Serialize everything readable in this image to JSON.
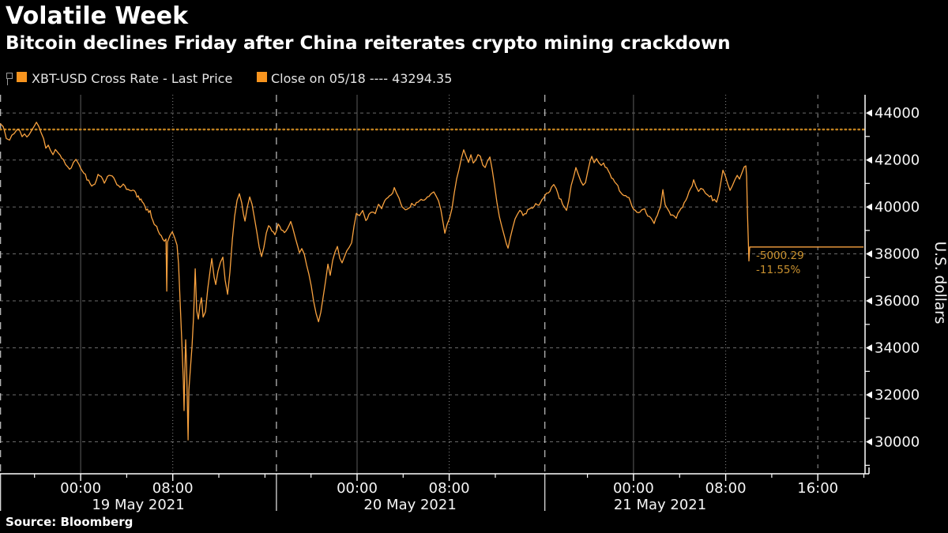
{
  "title": "Volatile Week",
  "subtitle": "Bitcoin declines Friday after China reiterates crypto mining crackdown",
  "source": "Source: Bloomberg",
  "legend": {
    "series_label": "XBT-USD Cross Rate - Last Price",
    "close_label": "Close on 05/18 ---- 43294.35"
  },
  "colors": {
    "background": "#000000",
    "accent_swatch": "#f7941e",
    "series_line": "#f9a23f",
    "close_line": "#bf801f",
    "annotation_text": "#c9912f",
    "axis": "#ffffff",
    "grid": "#6b6b6b",
    "separator": "#c4c4c4"
  },
  "chart_data": {
    "type": "line",
    "title": "XBT-USD Cross Rate - Last Price",
    "ylabel": "U.S. dollars",
    "x_unit": "hours since 19 May 2021 00:00",
    "x_range": [
      -7.0,
      68.1
    ],
    "y_range": [
      28640,
      44775
    ],
    "grid": "dashed horizontal at every 2000; vertical at 8h steps",
    "legend_position": "top-left",
    "close_line": {
      "value": 43294.35,
      "label": "Close on 05/18"
    },
    "last_price": 38294.06,
    "annotation": {
      "change": "-5000.29",
      "pct": "-11.55%"
    },
    "y_ticks_major": [
      30000,
      32000,
      34000,
      36000,
      38000,
      40000,
      42000,
      44000
    ],
    "y_ticks_minor": [
      29000,
      31000,
      33000,
      35000,
      37000,
      39000,
      41000,
      43000
    ],
    "x_ticks_major": [
      {
        "t": 0,
        "label": "00:00"
      },
      {
        "t": 8,
        "label": "08:00"
      },
      {
        "t": 24,
        "label": "00:00"
      },
      {
        "t": 32,
        "label": "08:00"
      },
      {
        "t": 48,
        "label": "00:00"
      },
      {
        "t": 56,
        "label": "08:00"
      },
      {
        "t": 64,
        "label": "16:00"
      }
    ],
    "x_ticks_minor": [
      -4,
      4,
      12,
      16,
      20,
      28,
      36,
      44,
      52,
      60,
      68
    ],
    "x_grid_solid": [
      0,
      24,
      48
    ],
    "x_grid_dotted": [
      8,
      32,
      56
    ],
    "x_grid_dashed": [
      64
    ],
    "day_separators": [
      -6.95,
      17.0,
      40.3
    ],
    "date_labels": [
      {
        "t": 5.0,
        "label": "19 May 2021"
      },
      {
        "t": 28.6,
        "label": "20 May 2021"
      },
      {
        "t": 50.3,
        "label": "21 May 2021"
      }
    ],
    "noise": {
      "seed": 13,
      "amplitude": 95,
      "end_t": 57.7
    },
    "series": [
      [
        -7.0,
        43600
      ],
      [
        -6.72,
        43400
      ],
      [
        -6.45,
        43000
      ],
      [
        -6.17,
        42820
      ],
      [
        -5.97,
        43050
      ],
      [
        -5.76,
        43150
      ],
      [
        -5.56,
        43300
      ],
      [
        -5.28,
        43230
      ],
      [
        -5.08,
        43000
      ],
      [
        -4.87,
        43120
      ],
      [
        -4.66,
        42950
      ],
      [
        -4.46,
        43080
      ],
      [
        -4.25,
        43250
      ],
      [
        -4.05,
        43420
      ],
      [
        -3.84,
        43620
      ],
      [
        -3.63,
        43450
      ],
      [
        -3.43,
        43150
      ],
      [
        -3.22,
        42900
      ],
      [
        -3.02,
        42520
      ],
      [
        -2.81,
        42650
      ],
      [
        -2.61,
        42400
      ],
      [
        -2.4,
        42250
      ],
      [
        -2.19,
        42430
      ],
      [
        -1.99,
        42320
      ],
      [
        -1.78,
        42180
      ],
      [
        -1.51,
        42000
      ],
      [
        -1.3,
        41830
      ],
      [
        -1.1,
        41620
      ],
      [
        -0.82,
        41680
      ],
      [
        -0.62,
        41890
      ],
      [
        -0.41,
        42010
      ],
      [
        -0.14,
        41780
      ],
      [
        0.14,
        41520
      ],
      [
        0.41,
        41330
      ],
      [
        0.69,
        41120
      ],
      [
        0.96,
        40900
      ],
      [
        1.23,
        41030
      ],
      [
        1.51,
        41380
      ],
      [
        1.78,
        41290
      ],
      [
        2.06,
        41020
      ],
      [
        2.33,
        41210
      ],
      [
        2.61,
        41360
      ],
      [
        2.88,
        41230
      ],
      [
        3.15,
        41010
      ],
      [
        3.43,
        40820
      ],
      [
        3.7,
        40930
      ],
      [
        3.98,
        40760
      ],
      [
        4.25,
        40700
      ],
      [
        4.66,
        40610
      ],
      [
        5.01,
        40380
      ],
      [
        5.35,
        40180
      ],
      [
        5.69,
        39950
      ],
      [
        6.04,
        39780
      ],
      [
        6.38,
        39350
      ],
      [
        6.72,
        39000
      ],
      [
        7.0,
        38750
      ],
      [
        7.27,
        38550
      ],
      [
        7.41,
        38650
      ],
      [
        7.48,
        36400
      ],
      [
        7.54,
        38500
      ],
      [
        7.75,
        38800
      ],
      [
        7.96,
        38950
      ],
      [
        8.16,
        38700
      ],
      [
        8.37,
        38350
      ],
      [
        8.5,
        37600
      ],
      [
        8.64,
        36000
      ],
      [
        8.78,
        34300
      ],
      [
        8.92,
        32600
      ],
      [
        8.98,
        31350
      ],
      [
        9.05,
        33100
      ],
      [
        9.12,
        34350
      ],
      [
        9.19,
        33300
      ],
      [
        9.26,
        31800
      ],
      [
        9.33,
        30080
      ],
      [
        9.4,
        32200
      ],
      [
        9.53,
        33100
      ],
      [
        9.67,
        34100
      ],
      [
        9.81,
        35350
      ],
      [
        9.95,
        37380
      ],
      [
        10.08,
        35600
      ],
      [
        10.22,
        35200
      ],
      [
        10.36,
        35800
      ],
      [
        10.49,
        36130
      ],
      [
        10.63,
        35300
      ],
      [
        10.84,
        35560
      ],
      [
        11.04,
        36500
      ],
      [
        11.25,
        37300
      ],
      [
        11.39,
        37820
      ],
      [
        11.59,
        37000
      ],
      [
        11.73,
        36700
      ],
      [
        11.93,
        37300
      ],
      [
        12.14,
        37650
      ],
      [
        12.35,
        37880
      ],
      [
        12.55,
        36900
      ],
      [
        12.76,
        36280
      ],
      [
        12.96,
        37200
      ],
      [
        13.17,
        38600
      ],
      [
        13.37,
        39600
      ],
      [
        13.58,
        40300
      ],
      [
        13.78,
        40540
      ],
      [
        13.99,
        40100
      ],
      [
        14.27,
        39400
      ],
      [
        14.47,
        40000
      ],
      [
        14.68,
        40430
      ],
      [
        14.88,
        40100
      ],
      [
        15.09,
        39500
      ],
      [
        15.3,
        38900
      ],
      [
        15.5,
        38300
      ],
      [
        15.71,
        37900
      ],
      [
        15.91,
        38300
      ],
      [
        16.12,
        38900
      ],
      [
        16.32,
        39200
      ],
      [
        16.6,
        39000
      ],
      [
        16.87,
        38900
      ],
      [
        17.15,
        39250
      ],
      [
        17.42,
        39100
      ],
      [
        17.7,
        38900
      ],
      [
        17.97,
        39100
      ],
      [
        18.24,
        39300
      ],
      [
        18.52,
        38900
      ],
      [
        18.79,
        38400
      ],
      [
        19.0,
        38050
      ],
      [
        19.2,
        38250
      ],
      [
        19.41,
        38000
      ],
      [
        19.62,
        37500
      ],
      [
        19.82,
        37100
      ],
      [
        20.03,
        36600
      ],
      [
        20.23,
        36000
      ],
      [
        20.44,
        35450
      ],
      [
        20.65,
        35130
      ],
      [
        20.85,
        35500
      ],
      [
        21.06,
        36200
      ],
      [
        21.26,
        36800
      ],
      [
        21.47,
        37550
      ],
      [
        21.67,
        37100
      ],
      [
        21.88,
        37700
      ],
      [
        22.09,
        38100
      ],
      [
        22.29,
        38300
      ],
      [
        22.5,
        37800
      ],
      [
        22.7,
        37600
      ],
      [
        22.91,
        37900
      ],
      [
        23.11,
        38150
      ],
      [
        23.32,
        38300
      ],
      [
        23.53,
        38500
      ],
      [
        23.73,
        39200
      ],
      [
        23.94,
        39730
      ],
      [
        24.21,
        39600
      ],
      [
        24.49,
        39850
      ],
      [
        24.76,
        39400
      ],
      [
        25.03,
        39620
      ],
      [
        25.31,
        39800
      ],
      [
        25.58,
        39750
      ],
      [
        25.86,
        40100
      ],
      [
        26.13,
        39900
      ],
      [
        26.41,
        40250
      ],
      [
        26.68,
        40400
      ],
      [
        26.95,
        40520
      ],
      [
        27.23,
        40800
      ],
      [
        27.43,
        40600
      ],
      [
        27.64,
        40350
      ],
      [
        27.91,
        40050
      ],
      [
        28.19,
        39850
      ],
      [
        28.46,
        40000
      ],
      [
        28.74,
        40150
      ],
      [
        29.01,
        40000
      ],
      [
        29.29,
        40200
      ],
      [
        29.56,
        40350
      ],
      [
        29.84,
        40300
      ],
      [
        30.11,
        40450
      ],
      [
        30.38,
        40500
      ],
      [
        30.66,
        40650
      ],
      [
        30.86,
        40450
      ],
      [
        31.07,
        40250
      ],
      [
        31.28,
        39900
      ],
      [
        31.48,
        39300
      ],
      [
        31.62,
        38870
      ],
      [
        31.82,
        39250
      ],
      [
        32.03,
        39500
      ],
      [
        32.24,
        39900
      ],
      [
        32.44,
        40600
      ],
      [
        32.65,
        41200
      ],
      [
        32.85,
        41600
      ],
      [
        33.06,
        42100
      ],
      [
        33.26,
        42450
      ],
      [
        33.47,
        42150
      ],
      [
        33.68,
        41900
      ],
      [
        33.88,
        42200
      ],
      [
        34.09,
        41850
      ],
      [
        34.29,
        42000
      ],
      [
        34.5,
        42250
      ],
      [
        34.7,
        42150
      ],
      [
        34.91,
        41800
      ],
      [
        35.12,
        41650
      ],
      [
        35.32,
        41950
      ],
      [
        35.53,
        42150
      ],
      [
        35.73,
        41600
      ],
      [
        35.94,
        40900
      ],
      [
        36.14,
        40200
      ],
      [
        36.35,
        39600
      ],
      [
        36.56,
        39200
      ],
      [
        36.76,
        38800
      ],
      [
        36.97,
        38450
      ],
      [
        37.11,
        38230
      ],
      [
        37.31,
        38700
      ],
      [
        37.52,
        39150
      ],
      [
        37.72,
        39500
      ],
      [
        37.93,
        39700
      ],
      [
        38.13,
        39800
      ],
      [
        38.41,
        39650
      ],
      [
        38.68,
        39800
      ],
      [
        38.96,
        39900
      ],
      [
        39.23,
        40000
      ],
      [
        39.51,
        40150
      ],
      [
        39.78,
        40050
      ],
      [
        40.05,
        40250
      ],
      [
        40.33,
        40500
      ],
      [
        40.6,
        40650
      ],
      [
        40.88,
        40850
      ],
      [
        41.08,
        40940
      ],
      [
        41.29,
        40750
      ],
      [
        41.56,
        40400
      ],
      [
        41.84,
        40100
      ],
      [
        42.04,
        39950
      ],
      [
        42.18,
        39870
      ],
      [
        42.39,
        40300
      ],
      [
        42.59,
        40900
      ],
      [
        42.8,
        41300
      ],
      [
        43.0,
        41700
      ],
      [
        43.21,
        41400
      ],
      [
        43.42,
        41100
      ],
      [
        43.62,
        40950
      ],
      [
        43.83,
        41050
      ],
      [
        44.03,
        41500
      ],
      [
        44.24,
        41950
      ],
      [
        44.38,
        42140
      ],
      [
        44.58,
        41900
      ],
      [
        44.79,
        42030
      ],
      [
        44.99,
        41880
      ],
      [
        45.2,
        41750
      ],
      [
        45.4,
        41820
      ],
      [
        45.68,
        41650
      ],
      [
        45.95,
        41400
      ],
      [
        46.23,
        41200
      ],
      [
        46.5,
        40950
      ],
      [
        46.78,
        40700
      ],
      [
        47.05,
        40520
      ],
      [
        47.32,
        40450
      ],
      [
        47.6,
        40400
      ],
      [
        47.87,
        40050
      ],
      [
        48.15,
        39850
      ],
      [
        48.42,
        39700
      ],
      [
        48.7,
        39850
      ],
      [
        48.97,
        39950
      ],
      [
        49.25,
        39620
      ],
      [
        49.52,
        39520
      ],
      [
        49.79,
        39330
      ],
      [
        50.07,
        39650
      ],
      [
        50.34,
        40000
      ],
      [
        50.55,
        40750
      ],
      [
        50.75,
        40100
      ],
      [
        50.96,
        39900
      ],
      [
        51.23,
        39720
      ],
      [
        51.51,
        39600
      ],
      [
        51.71,
        39480
      ],
      [
        51.99,
        39800
      ],
      [
        52.26,
        40050
      ],
      [
        52.54,
        40300
      ],
      [
        52.81,
        40600
      ],
      [
        53.09,
        40900
      ],
      [
        53.22,
        41130
      ],
      [
        53.43,
        40850
      ],
      [
        53.64,
        40650
      ],
      [
        53.84,
        40800
      ],
      [
        54.05,
        40750
      ],
      [
        54.25,
        40600
      ],
      [
        54.46,
        40480
      ],
      [
        54.73,
        40400
      ],
      [
        55.01,
        40300
      ],
      [
        55.21,
        40230
      ],
      [
        55.42,
        40600
      ],
      [
        55.62,
        41150
      ],
      [
        55.76,
        41540
      ],
      [
        55.97,
        41300
      ],
      [
        56.17,
        41000
      ],
      [
        56.38,
        40700
      ],
      [
        56.58,
        40900
      ],
      [
        56.79,
        41150
      ],
      [
        57.0,
        41320
      ],
      [
        57.2,
        41200
      ],
      [
        57.41,
        41450
      ],
      [
        57.61,
        41680
      ],
      [
        57.75,
        41750
      ],
      [
        57.82,
        41300
      ],
      [
        57.89,
        39800
      ],
      [
        57.96,
        38600
      ],
      [
        58.02,
        37700
      ],
      [
        58.09,
        38294
      ],
      [
        58.5,
        38294.06
      ],
      [
        62.0,
        38294.06
      ],
      [
        65.0,
        38294.06
      ],
      [
        67.97,
        38294.06
      ]
    ]
  }
}
